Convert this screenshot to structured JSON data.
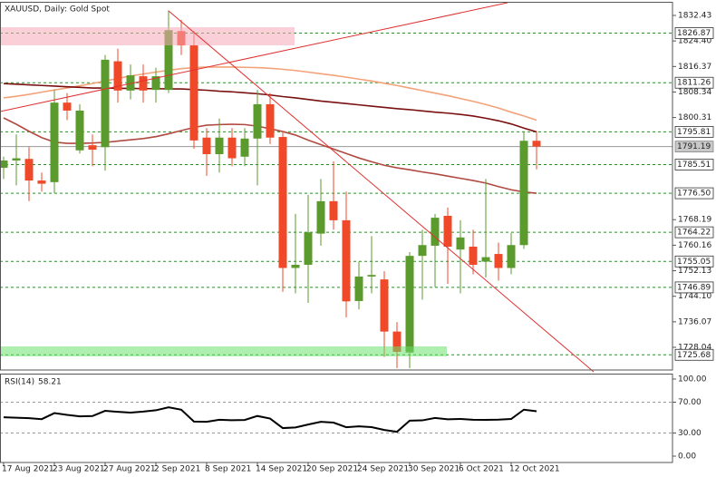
{
  "chart_data": {
    "type": "candlestick",
    "title": "XAUUSD, Daily:  Gold Spot",
    "categories": [
      "17 Aug 2021",
      null,
      null,
      null,
      "23 Aug 2021",
      null,
      null,
      null,
      "27 Aug 2021",
      null,
      null,
      null,
      "2 Sep 2021",
      null,
      null,
      null,
      "8 Sep 2021",
      null,
      null,
      null,
      "14 Sep 2021",
      null,
      null,
      null,
      "20 Sep 2021",
      null,
      null,
      null,
      "24 Sep 2021",
      null,
      null,
      null,
      "30 Sep 2021",
      null,
      null,
      null,
      "6 Oct 2021",
      null,
      null,
      null,
      "12 Oct 2021",
      null,
      null
    ],
    "open": [
      1784.5,
      1786.8,
      1787.3,
      1780.5,
      1780.0,
      1805.0,
      1790.0,
      1791.6,
      1791.0,
      1818.0,
      1808.8,
      1813.3,
      1809.0,
      1809.0,
      1827.5,
      1823.0,
      1794.0,
      1788.8,
      1794.0,
      1788.0,
      1793.7,
      1804.5,
      1794.2,
      1753.0,
      1754.0,
      1763.8,
      1774.0,
      1768.0,
      1742.6,
      1750.3,
      1749.4,
      1733.0,
      1726.4,
      1756.8,
      1760.0,
      1769.4,
      1758.8,
      1759.7,
      1755.0,
      1757.4,
      1753.0,
      1760.2,
      1793.0
    ],
    "high": [
      1788.0,
      1795.0,
      1791.0,
      1783.0,
      1809.0,
      1808.0,
      1804.5,
      1795.0,
      1820.0,
      1822.0,
      1817.0,
      1817.0,
      1816.0,
      1834.0,
      1831.0,
      1827.5,
      1797.0,
      1800.0,
      1797.0,
      1797.0,
      1809.0,
      1808.0,
      1796.0,
      1770.0,
      1776.0,
      1781.0,
      1786.5,
      1777.0,
      1755.0,
      1763.0,
      1752.0,
      1736.0,
      1758.0,
      1765.0,
      1770.0,
      1772.0,
      1768.0,
      1765.0,
      1781.0,
      1761.0,
      1764.0,
      1796.0,
      1796.0
    ],
    "low": [
      1781.0,
      1779.0,
      1774.0,
      1777.0,
      1776.5,
      1799.5,
      1789.0,
      1785.0,
      1783.6,
      1805.0,
      1806.0,
      1805.0,
      1805.0,
      1808.0,
      1820.0,
      1790.5,
      1782.0,
      1783.0,
      1785.0,
      1785.0,
      1779.0,
      1792.0,
      1745.5,
      1745.0,
      1742.0,
      1760.0,
      1765.0,
      1737.5,
      1740.0,
      1745.0,
      1725.0,
      1721.5,
      1721.5,
      1743.0,
      1747.0,
      1748.0,
      1745.0,
      1751.0,
      1750.0,
      1749.0,
      1751.0,
      1759.0,
      1784.0
    ],
    "close": [
      1786.8,
      1787.5,
      1780.5,
      1779.5,
      1805.0,
      1802.5,
      1802.5,
      1790.2,
      1818.5,
      1808.8,
      1813.6,
      1808.8,
      1813.3,
      1827.8,
      1823.0,
      1793.1,
      1788.8,
      1794.0,
      1787.5,
      1793.7,
      1804.5,
      1794.0,
      1753.0,
      1754.0,
      1764.2,
      1774.0,
      1768.0,
      1742.5,
      1750.3,
      1750.8,
      1733.0,
      1726.6,
      1756.8,
      1760.2,
      1768.8,
      1759.7,
      1762.6,
      1754.0,
      1756.4,
      1753.0,
      1760.2,
      1793.0,
      1791.2
    ],
    "up_color": "#5b9a2c",
    "down_color": "#f0492a",
    "ylim": [
      1720.91,
      1836.71
    ],
    "yticks": [
      1832.43,
      {
        "value": 1824.4,
        "label": "1824.40"
      },
      1816.37,
      1808.34,
      1800.31,
      1768.19,
      1760.16,
      1752.13,
      {
        "value": 1744.1,
        "label": "1744.10"
      },
      1736.07,
      1728.04
    ],
    "levels": [
      1826.87,
      1811.26,
      1795.81,
      1785.51,
      {
        "value": 1776.5,
        "label": "1776.50"
      },
      1764.22,
      1755.05,
      1746.89,
      1725.68
    ],
    "level_color": "#2f8a2f",
    "current_price": 1791.19,
    "lines": [
      {
        "color": "#f4a27a",
        "values": [
          1806.5,
          1807.0,
          1807.6,
          1808.3,
          1809.0,
          1809.6,
          1810.3,
          1811.0,
          1811.8,
          1812.6,
          1813.4,
          1814.0,
          1814.6,
          1815.2,
          1815.7,
          1816.0,
          1816.2,
          1816.2,
          1816.2,
          1816.1,
          1816.0,
          1815.8,
          1815.5,
          1815.1,
          1814.6,
          1814.1,
          1813.6,
          1813.0,
          1812.4,
          1811.8,
          1811.1,
          1810.4,
          1809.6,
          1808.8,
          1808.0,
          1807.2,
          1806.3,
          1805.4,
          1804.4,
          1803.3,
          1802.0,
          1800.8,
          1799.5
        ]
      },
      {
        "color": "#7a1010",
        "values": [
          1811.0,
          1810.8,
          1810.6,
          1810.4,
          1810.2,
          1810.0,
          1809.8,
          1809.6,
          1809.6,
          1809.5,
          1809.5,
          1809.4,
          1809.4,
          1809.3,
          1809.3,
          1809.1,
          1808.9,
          1808.6,
          1808.4,
          1808.1,
          1807.8,
          1807.4,
          1806.9,
          1806.5,
          1806.0,
          1805.5,
          1805.1,
          1804.7,
          1804.3,
          1803.9,
          1803.5,
          1803.1,
          1802.8,
          1802.4,
          1802.0,
          1801.7,
          1801.3,
          1800.8,
          1800.1,
          1799.3,
          1798.3,
          1797.0,
          1795.8
        ]
      },
      {
        "color": "#b04a40",
        "values": [
          1800.2,
          1798.2,
          1796.0,
          1794.0,
          1792.6,
          1792.2,
          1792.2,
          1792.3,
          1792.5,
          1792.9,
          1793.3,
          1793.7,
          1794.3,
          1795.2,
          1796.2,
          1797.2,
          1797.9,
          1798.1,
          1798.2,
          1798.1,
          1797.6,
          1796.8,
          1795.9,
          1794.8,
          1793.2,
          1791.8,
          1790.4,
          1789.0,
          1787.6,
          1786.4,
          1785.3,
          1784.5,
          1783.9,
          1783.2,
          1782.6,
          1781.9,
          1781.2,
          1780.5,
          1779.7,
          1778.6,
          1777.6,
          1776.9,
          1776.5
        ]
      }
    ],
    "rsi": {
      "title": "RSI(14)",
      "color": "#000000",
      "values": [
        50.5,
        49.9,
        49.2,
        48.0,
        55.8,
        53.5,
        51.6,
        52.0,
        58.8,
        57.5,
        56.5,
        57.8,
        59.5,
        63.3,
        60.2,
        44.9,
        44.5,
        47.2,
        46.6,
        46.9,
        52.1,
        48.8,
        36.4,
        37.2,
        41.0,
        44.5,
        43.5,
        37.5,
        38.6,
        37.6,
        34.0,
        31.6,
        46.0,
        46.4,
        49.5,
        47.8,
        48.3,
        47.2,
        47.0,
        47.3,
        48.2,
        60.3,
        58.21
      ],
      "ylim": [
        -8.24,
        107.06
      ],
      "yticks": [
        {
          "value": 100,
          "label": "100.00"
        },
        {
          "value": 70,
          "label": "70.00"
        },
        {
          "value": 30,
          "label": "30.00"
        },
        {
          "value": 0,
          "label": "0.00"
        }
      ],
      "levels": [
        70,
        30
      ]
    }
  }
}
